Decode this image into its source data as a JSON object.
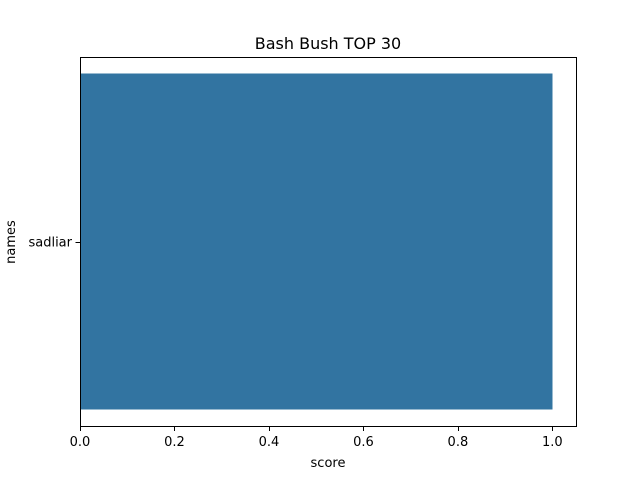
{
  "chart_data": {
    "type": "bar",
    "orientation": "horizontal",
    "title": "Bash Bush TOP 30",
    "xlabel": "score",
    "ylabel": "names",
    "categories": [
      "sadliar"
    ],
    "values": [
      1.0
    ],
    "xlim": [
      0.0,
      1.05
    ],
    "xticks": [
      0.0,
      0.2,
      0.4,
      0.6,
      0.8,
      1.0
    ],
    "xtick_labels": [
      "0.0",
      "0.2",
      "0.4",
      "0.6",
      "0.8",
      "1.0"
    ],
    "grid": false,
    "bar_color": "#3274a1"
  }
}
